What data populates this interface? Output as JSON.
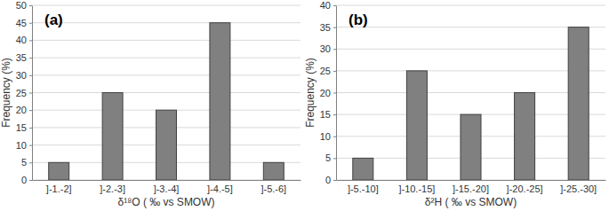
{
  "chart_data": [
    {
      "type": "bar",
      "title": "(a)",
      "x_label": "δ¹⁸O ( ‰ vs SMOW)",
      "y_label": "Frequency (%)",
      "categories": [
        "]-1.-2]",
        "]-2.-3]",
        "]-3.-4]",
        "]-4.-5]",
        "]-5.-6]"
      ],
      "values": [
        5,
        25,
        20,
        45,
        5
      ],
      "color": "#808080",
      "ylim": [
        0,
        50
      ],
      "yticks": [
        0,
        5,
        10,
        15,
        20,
        25,
        30,
        35,
        40,
        45,
        50
      ],
      "grid": true
    },
    {
      "type": "bar",
      "title": "(b)",
      "x_label": "δ²H ( ‰ vs SMOW)",
      "y_label": "Frequency (%)",
      "categories": [
        "]-5.-10]",
        "]-10.-15]",
        "]-15.-20]",
        "]-20.-25]",
        "]-25.-30]"
      ],
      "values": [
        5,
        25,
        15,
        20,
        35
      ],
      "color": "#808080",
      "ylim": [
        0,
        40
      ],
      "yticks": [
        0,
        5,
        10,
        15,
        20,
        25,
        30,
        35,
        40
      ],
      "grid": true
    }
  ]
}
